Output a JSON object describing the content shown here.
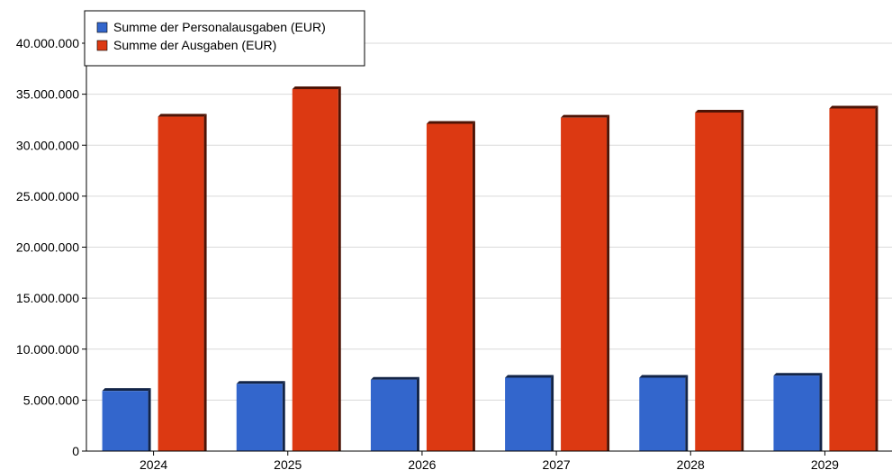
{
  "chart_data": {
    "type": "bar",
    "title": "",
    "xlabel": "",
    "ylabel": "",
    "categories": [
      "2024",
      "2025",
      "2026",
      "2027",
      "2028",
      "2029"
    ],
    "series": [
      {
        "name": "Summe der Personalausgaben (EUR)",
        "color": "#3366CC",
        "values": [
          5900000,
          6600000,
          7000000,
          7200000,
          7200000,
          7400000
        ]
      },
      {
        "name": "Summe der Ausgaben (EUR)",
        "color": "#DC3912",
        "values": [
          32800000,
          35500000,
          32100000,
          32700000,
          33200000,
          33600000
        ]
      }
    ],
    "ylim": [
      0,
      40000000
    ],
    "yticks": [
      0,
      5000000,
      10000000,
      15000000,
      20000000,
      25000000,
      30000000,
      35000000,
      40000000
    ],
    "ytick_labels": [
      "0",
      "5.000.000",
      "10.000.000",
      "15.000.000",
      "20.000.000",
      "25.000.000",
      "30.000.000",
      "35.000.000",
      "40.000.000"
    ],
    "grid": true,
    "legend_position": "top-left"
  }
}
